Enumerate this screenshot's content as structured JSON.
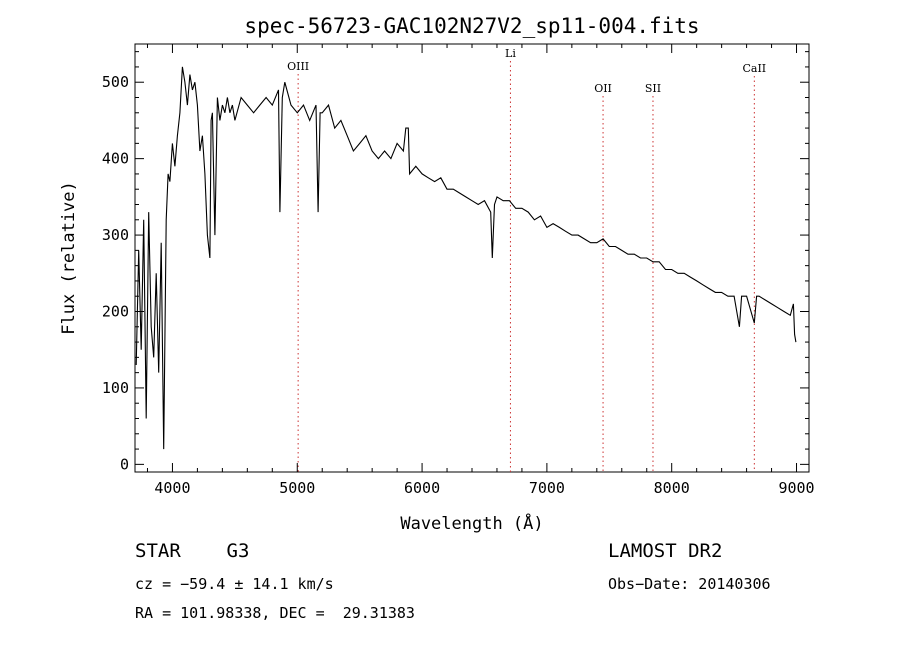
{
  "chart_data": {
    "type": "line",
    "title": "spec-56723-GAC102N27V2_sp11-004.fits",
    "xlabel": "Wavelength (Å)",
    "ylabel": "Flux (relative)",
    "xlim": [
      3700,
      9100
    ],
    "ylim": [
      -10,
      550
    ],
    "xticks": [
      4000,
      5000,
      6000,
      7000,
      8000,
      9000
    ],
    "yticks": [
      0,
      100,
      200,
      300,
      400,
      500
    ],
    "grid": false,
    "line_color": "#000000",
    "marker_color": "#cc3333",
    "series": [
      {
        "x": [
          3710,
          3730,
          3750,
          3770,
          3790,
          3810,
          3830,
          3850,
          3870,
          3890,
          3910,
          3930,
          3950,
          3965,
          3980,
          4000,
          4020,
          4040,
          4060,
          4080,
          4100,
          4120,
          4140,
          4160,
          4180,
          4200,
          4220,
          4240,
          4260,
          4280,
          4300,
          4310,
          4320,
          4340,
          4360,
          4380,
          4400,
          4420,
          4440,
          4460,
          4480,
          4500,
          4550,
          4600,
          4650,
          4700,
          4750,
          4800,
          4850,
          4861,
          4880,
          4900,
          4950,
          5000,
          5050,
          5100,
          5150,
          5167,
          5183,
          5200,
          5250,
          5300,
          5350,
          5400,
          5450,
          5500,
          5550,
          5600,
          5650,
          5700,
          5750,
          5800,
          5850,
          5870,
          5890,
          5900,
          5950,
          6000,
          6050,
          6100,
          6150,
          6200,
          6250,
          6300,
          6350,
          6400,
          6450,
          6500,
          6550,
          6563,
          6580,
          6600,
          6650,
          6700,
          6750,
          6800,
          6850,
          6900,
          6950,
          7000,
          7050,
          7100,
          7150,
          7200,
          7250,
          7300,
          7350,
          7400,
          7450,
          7500,
          7550,
          7600,
          7650,
          7700,
          7750,
          7800,
          7850,
          7900,
          7950,
          8000,
          8050,
          8100,
          8150,
          8200,
          8250,
          8300,
          8350,
          8400,
          8450,
          8500,
          8542,
          8560,
          8600,
          8662,
          8680,
          8700,
          8750,
          8800,
          8850,
          8900,
          8950,
          8975,
          8985,
          8995
        ],
        "y": [
          130,
          280,
          150,
          320,
          60,
          330,
          180,
          140,
          250,
          120,
          290,
          20,
          320,
          380,
          370,
          420,
          390,
          430,
          460,
          520,
          500,
          470,
          510,
          490,
          500,
          470,
          410,
          430,
          380,
          300,
          270,
          450,
          460,
          300,
          480,
          450,
          470,
          460,
          480,
          460,
          470,
          450,
          480,
          470,
          460,
          470,
          480,
          470,
          490,
          330,
          480,
          500,
          470,
          460,
          470,
          450,
          470,
          330,
          460,
          460,
          470,
          440,
          450,
          430,
          410,
          420,
          430,
          410,
          400,
          410,
          400,
          420,
          410,
          440,
          440,
          380,
          390,
          380,
          375,
          370,
          375,
          360,
          360,
          355,
          350,
          345,
          340,
          345,
          330,
          270,
          340,
          350,
          345,
          345,
          335,
          335,
          330,
          320,
          325,
          310,
          315,
          310,
          305,
          300,
          300,
          295,
          290,
          290,
          295,
          285,
          285,
          280,
          275,
          275,
          270,
          270,
          265,
          265,
          255,
          255,
          250,
          250,
          245,
          240,
          235,
          230,
          225,
          225,
          220,
          220,
          180,
          220,
          220,
          185,
          220,
          220,
          215,
          210,
          205,
          200,
          195,
          210,
          170,
          160
        ]
      }
    ],
    "lines": [
      {
        "label": "OIII",
        "x": 5007
      },
      {
        "label": "Li",
        "x": 6708
      },
      {
        "label": "OII",
        "x": 7450
      },
      {
        "label": "SII",
        "x": 7850
      },
      {
        "label": "CaII",
        "x": 8662
      }
    ]
  },
  "info": {
    "class": "STAR    G3",
    "survey": "LAMOST DR2",
    "cz": "cz = −59.4 ± 14.1 km/s",
    "obs_date": "Obs−Date: 20140306",
    "coords": "RA = 101.98338, DEC =  29.31383"
  }
}
